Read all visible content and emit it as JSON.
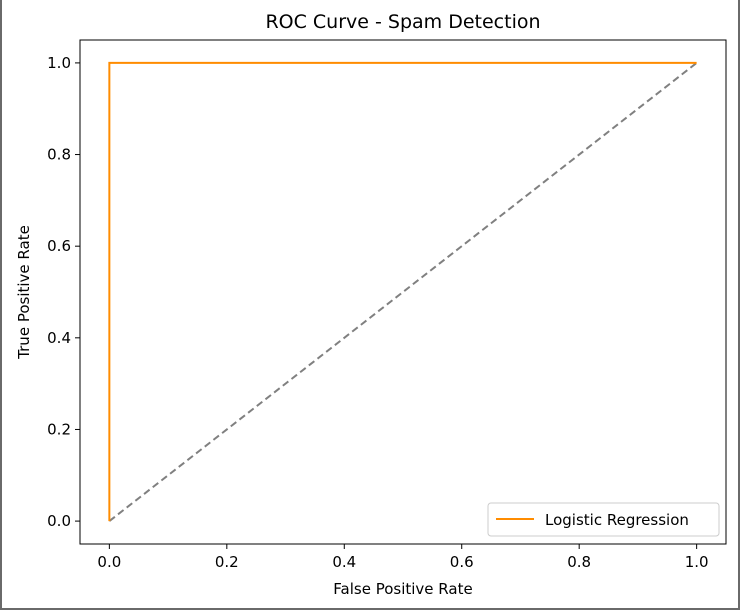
{
  "chart_data": {
    "type": "line",
    "title": "ROC Curve - Spam Detection",
    "xlabel": "False Positive Rate",
    "ylabel": "True Positive Rate",
    "xlim": [
      -0.05,
      1.05
    ],
    "ylim": [
      -0.05,
      1.05
    ],
    "xticks": [
      "0.0",
      "0.2",
      "0.4",
      "0.6",
      "0.8",
      "1.0"
    ],
    "yticks": [
      "0.0",
      "0.2",
      "0.4",
      "0.6",
      "0.8",
      "1.0"
    ],
    "grid": false,
    "legend_position": "bottom-right",
    "series": [
      {
        "name": "Logistic Regression",
        "color": "#ff8c00",
        "style": "solid",
        "x": [
          0.0,
          0.0,
          1.0
        ],
        "y": [
          0.0,
          1.0,
          1.0
        ]
      },
      {
        "color": "#808080",
        "style": "dashed",
        "x": [
          0.0,
          1.0
        ],
        "y": [
          0.0,
          1.0
        ]
      }
    ]
  }
}
